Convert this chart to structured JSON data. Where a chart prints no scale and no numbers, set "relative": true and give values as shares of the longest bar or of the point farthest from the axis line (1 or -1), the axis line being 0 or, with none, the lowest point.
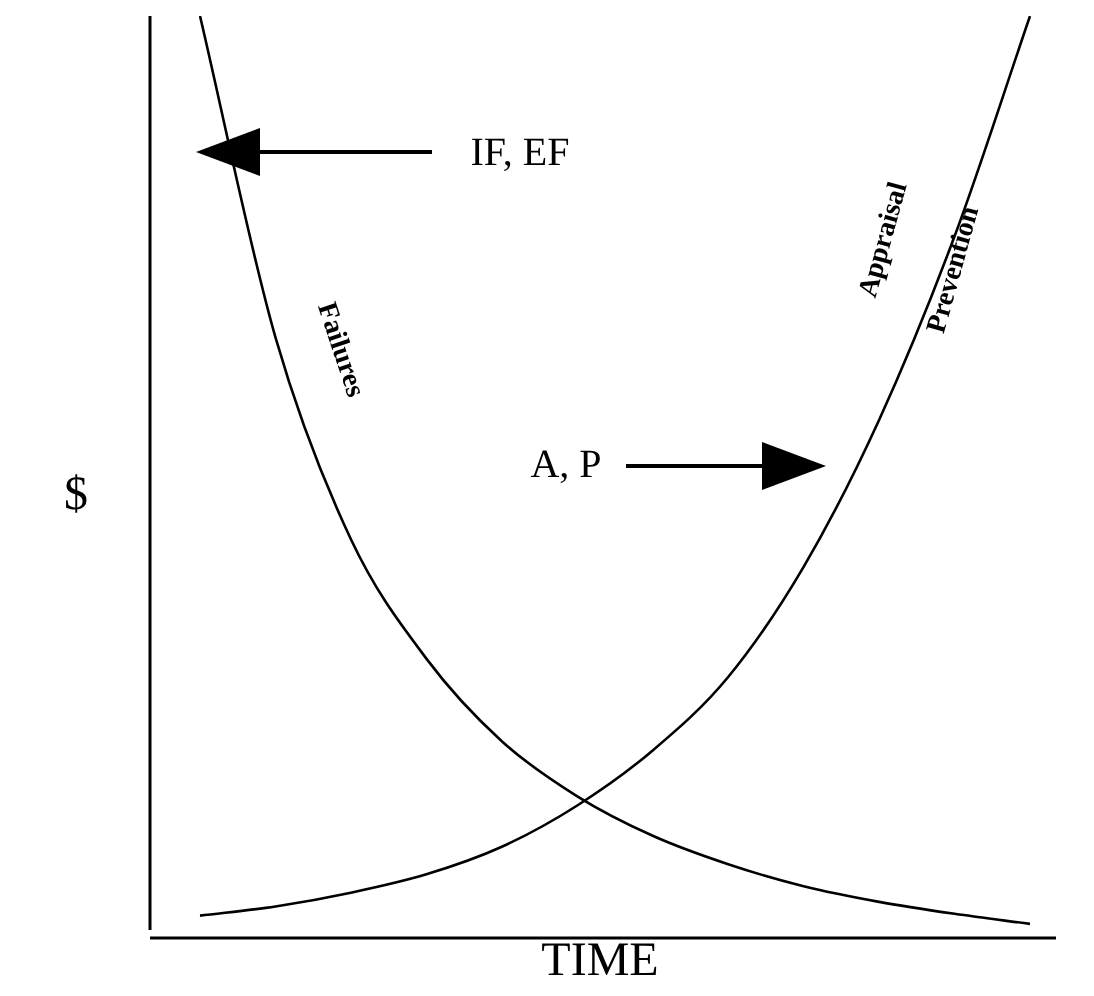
{
  "chart_data": {
    "type": "line",
    "relative": true,
    "xlabel": "TIME",
    "ylabel": "$",
    "marker": "none",
    "legend": false,
    "categories": [
      null,
      null,
      null,
      null,
      null,
      null,
      null,
      null,
      null,
      null,
      null,
      null
    ],
    "series": [
      {
        "name": "Failures",
        "color": "#000000",
        "values": [
          1.0,
          0.65,
          0.43,
          0.3,
          0.21,
          0.15,
          0.107,
          0.076,
          0.052,
          0.035,
          0.022,
          0.011
        ]
      },
      {
        "name": "Appraisal Prevention",
        "color": "#000000",
        "values": [
          0.02,
          0.03,
          0.045,
          0.065,
          0.095,
          0.14,
          0.2,
          0.28,
          0.4,
          0.56,
          0.76,
          1.0
        ]
      }
    ],
    "annotations": [
      "IF, EF",
      "A, P"
    ]
  }
}
